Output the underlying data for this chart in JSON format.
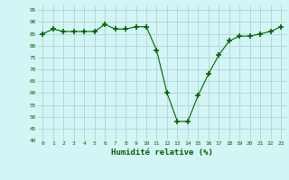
{
  "x": [
    0,
    1,
    2,
    3,
    4,
    5,
    6,
    7,
    8,
    9,
    10,
    11,
    12,
    13,
    14,
    15,
    16,
    17,
    18,
    19,
    20,
    21,
    22,
    23
  ],
  "y": [
    85,
    87,
    86,
    86,
    86,
    86,
    89,
    87,
    87,
    88,
    88,
    78,
    60,
    48,
    48,
    59,
    68,
    76,
    82,
    84,
    84,
    85,
    86,
    88
  ],
  "xlabel": "Humidité relative (%)",
  "ylim": [
    40,
    97
  ],
  "yticks": [
    40,
    45,
    50,
    55,
    60,
    65,
    70,
    75,
    80,
    85,
    90,
    95
  ],
  "xticks": [
    0,
    1,
    2,
    3,
    4,
    5,
    6,
    7,
    8,
    9,
    10,
    11,
    12,
    13,
    14,
    15,
    16,
    17,
    18,
    19,
    20,
    21,
    22,
    23
  ],
  "line_color": "#006400",
  "marker_color": "#006400",
  "bg_color": "#d4f5f5",
  "grid_color": "#aacccc",
  "xlabel_color": "#006400",
  "tick_color": "#006400"
}
